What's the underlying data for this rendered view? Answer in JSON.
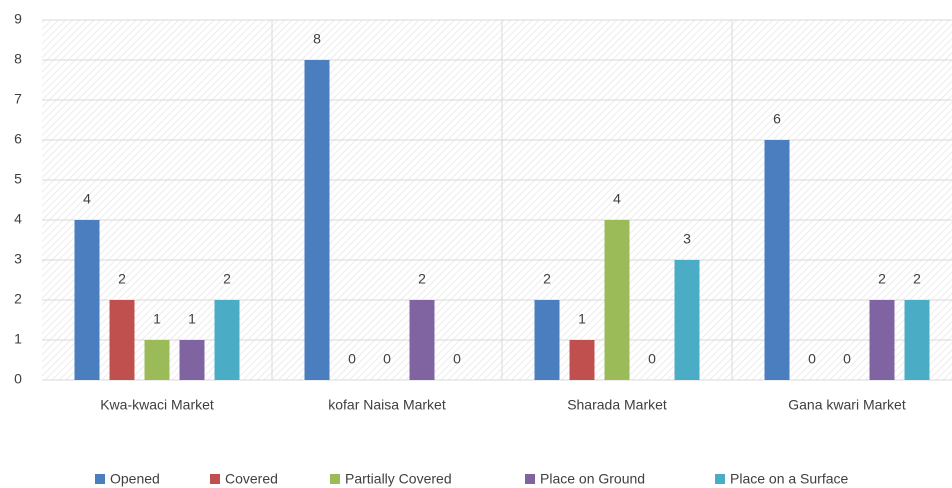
{
  "chart_data": {
    "type": "bar",
    "categories": [
      "Kwa-kwaci Market",
      "kofar Naisa Market",
      "Sharada Market",
      "Gana kwari Market"
    ],
    "series": [
      {
        "name": "Opened",
        "color": "#4a7ebf",
        "values": [
          4,
          8,
          2,
          6
        ]
      },
      {
        "name": "Covered",
        "color": "#c0504d",
        "values": [
          2,
          0,
          1,
          0
        ]
      },
      {
        "name": "Partially Covered",
        "color": "#9bbb59",
        "values": [
          1,
          0,
          4,
          0
        ]
      },
      {
        "name": "Place on Ground",
        "color": "#8064a2",
        "values": [
          1,
          2,
          0,
          2
        ]
      },
      {
        "name": "Place on a Surface",
        "color": "#4bacc6",
        "values": [
          2,
          0,
          3,
          2
        ]
      }
    ],
    "ylim": [
      0,
      9
    ],
    "yticks": [
      0,
      1,
      2,
      3,
      4,
      5,
      6,
      7,
      8,
      9
    ],
    "grid": true,
    "legend": "bottom"
  }
}
